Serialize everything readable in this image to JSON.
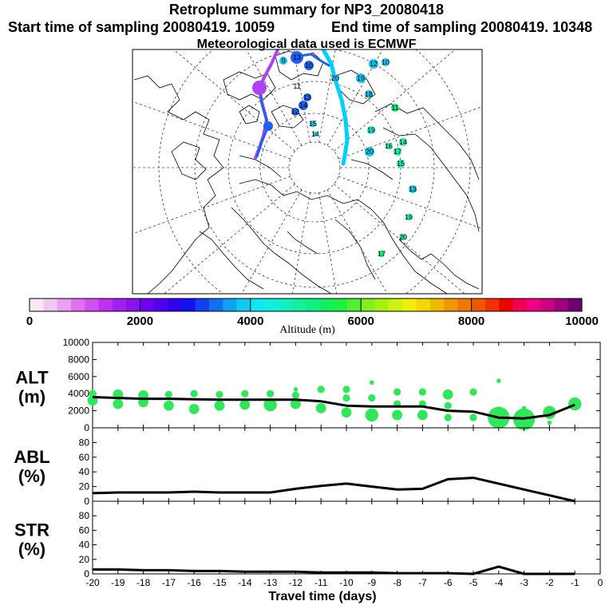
{
  "header": {
    "title": "Retroplume summary for NP3_20080418",
    "start_label": "Start time of sampling 20080419. 10059",
    "end_label": "End time of sampling 20080419. 10348",
    "met_label": "Meteorological data used is ECMWF"
  },
  "colorbar": {
    "ticks": [
      "0",
      "2000",
      "4000",
      "6000",
      "8000",
      "10000"
    ],
    "tick_values": [
      0,
      2000,
      4000,
      6000,
      8000,
      10000
    ],
    "label": "Altitude (m)",
    "colors": [
      "#f8e8f8",
      "#f0c8f0",
      "#e8a0f0",
      "#e070f0",
      "#d050f0",
      "#c030f0",
      "#a020f0",
      "#8a10f0",
      "#7000f0",
      "#5000f0",
      "#3000f0",
      "#1010f0",
      "#1040f0",
      "#1070f0",
      "#10a0f0",
      "#10c8f0",
      "#10e8f0",
      "#10f0e0",
      "#10f0c0",
      "#10f0a0",
      "#10f080",
      "#10f060",
      "#20f040",
      "#50f030",
      "#80f020",
      "#a8f010",
      "#d0f010",
      "#f0f000",
      "#f0d800",
      "#f0b800",
      "#f09800",
      "#f07800",
      "#f05800",
      "#f03000",
      "#f00000",
      "#f00050",
      "#f00080",
      "#d00080",
      "#a00080",
      "#700070"
    ]
  },
  "map": {
    "trajectory_labels": [
      "10",
      "13",
      "9",
      "11",
      "13",
      "14",
      "12",
      "15",
      "14",
      "20",
      "19",
      "18",
      "12",
      "10",
      "11",
      "19",
      "16",
      "14",
      "17",
      "20",
      "15",
      "13",
      "19",
      "20",
      "17"
    ],
    "trajectory_colors": {
      "main": "#00d0ff",
      "high": "#b040f0",
      "mid": "#2060f0"
    }
  },
  "chart_data": [
    {
      "type": "line",
      "name": "ALT",
      "ylabel": "ALT (m)",
      "ylabel_lines": [
        "ALT",
        "(m)"
      ],
      "ylim": [
        0,
        10000
      ],
      "yticks": [
        0,
        2000,
        4000,
        6000,
        8000,
        10000
      ],
      "x": [
        -20,
        -19,
        -18,
        -17,
        -16,
        -15,
        -14,
        -13,
        -12,
        -11,
        -10,
        -9,
        -8,
        -7,
        -6,
        -5,
        -4,
        -3,
        -2,
        -1
      ],
      "values": [
        3600,
        3500,
        3400,
        3400,
        3350,
        3300,
        3300,
        3300,
        3300,
        3100,
        2600,
        2500,
        2500,
        2500,
        2000,
        1900,
        1200,
        1100,
        1500,
        2700
      ],
      "clusters": [
        {
          "x": -20,
          "alt": 4000,
          "size": 2
        },
        {
          "x": -20,
          "alt": 3200,
          "size": 3
        },
        {
          "x": -19,
          "alt": 3900,
          "size": 3
        },
        {
          "x": -19,
          "alt": 2800,
          "size": 3
        },
        {
          "x": -18,
          "alt": 3800,
          "size": 3
        },
        {
          "x": -18,
          "alt": 3000,
          "size": 3
        },
        {
          "x": -17,
          "alt": 3900,
          "size": 2
        },
        {
          "x": -17,
          "alt": 2600,
          "size": 3
        },
        {
          "x": -16,
          "alt": 4000,
          "size": 2
        },
        {
          "x": -16,
          "alt": 2200,
          "size": 3
        },
        {
          "x": -15,
          "alt": 3900,
          "size": 2
        },
        {
          "x": -15,
          "alt": 2600,
          "size": 3
        },
        {
          "x": -14,
          "alt": 4000,
          "size": 2
        },
        {
          "x": -14,
          "alt": 2700,
          "size": 3
        },
        {
          "x": -13,
          "alt": 4000,
          "size": 2
        },
        {
          "x": -13,
          "alt": 2700,
          "size": 4
        },
        {
          "x": -12,
          "alt": 4500,
          "size": 1
        },
        {
          "x": -12,
          "alt": 3800,
          "size": 2
        },
        {
          "x": -12,
          "alt": 2800,
          "size": 3
        },
        {
          "x": -11,
          "alt": 4500,
          "size": 2
        },
        {
          "x": -11,
          "alt": 2300,
          "size": 3
        },
        {
          "x": -10,
          "alt": 4500,
          "size": 2
        },
        {
          "x": -10,
          "alt": 3500,
          "size": 2
        },
        {
          "x": -10,
          "alt": 1800,
          "size": 3
        },
        {
          "x": -9,
          "alt": 5300,
          "size": 1
        },
        {
          "x": -9,
          "alt": 3500,
          "size": 2
        },
        {
          "x": -9,
          "alt": 1500,
          "size": 4
        },
        {
          "x": -8,
          "alt": 4200,
          "size": 2
        },
        {
          "x": -8,
          "alt": 2800,
          "size": 2
        },
        {
          "x": -8,
          "alt": 1500,
          "size": 3
        },
        {
          "x": -7,
          "alt": 4200,
          "size": 2
        },
        {
          "x": -7,
          "alt": 2800,
          "size": 2
        },
        {
          "x": -7,
          "alt": 1500,
          "size": 3
        },
        {
          "x": -6,
          "alt": 3900,
          "size": 3
        },
        {
          "x": -6,
          "alt": 2600,
          "size": 2
        },
        {
          "x": -6,
          "alt": 1200,
          "size": 2
        },
        {
          "x": -5,
          "alt": 4200,
          "size": 2
        },
        {
          "x": -5,
          "alt": 1200,
          "size": 2
        },
        {
          "x": -4,
          "alt": 5500,
          "size": 1
        },
        {
          "x": -4,
          "alt": 1200,
          "size": 7
        },
        {
          "x": -3,
          "alt": 1000,
          "size": 7
        },
        {
          "x": -3,
          "alt": 2300,
          "size": 1
        },
        {
          "x": -2,
          "alt": 1800,
          "size": 4
        },
        {
          "x": -2,
          "alt": 600,
          "size": 1
        },
        {
          "x": -1,
          "alt": 2800,
          "size": 4
        }
      ]
    },
    {
      "type": "line",
      "name": "ABL",
      "ylabel": "ABL (%)",
      "ylabel_lines": [
        "ABL",
        "(%)"
      ],
      "ylim": [
        0,
        100
      ],
      "yticks": [
        0,
        20,
        40,
        60,
        80
      ],
      "x": [
        -20,
        -19,
        -18,
        -17,
        -16,
        -15,
        -14,
        -13,
        -12,
        -11,
        -10,
        -9,
        -8,
        -7,
        -6,
        -5,
        -4,
        -3,
        -2,
        -1
      ],
      "values": [
        11,
        12,
        12,
        12,
        13,
        12,
        12,
        12,
        17,
        21,
        24,
        20,
        16,
        17,
        30,
        32,
        24,
        16,
        8,
        0
      ]
    },
    {
      "type": "line",
      "name": "STR",
      "ylabel": "STR (%)",
      "ylabel_lines": [
        "STR",
        "(%)"
      ],
      "ylim": [
        0,
        100
      ],
      "yticks": [
        0,
        20,
        40,
        60,
        80
      ],
      "x": [
        -20,
        -19,
        -18,
        -17,
        -16,
        -15,
        -14,
        -13,
        -12,
        -11,
        -10,
        -9,
        -8,
        -7,
        -6,
        -5,
        -4,
        -3,
        -2,
        -1
      ],
      "values": [
        6,
        6,
        5,
        5,
        4,
        4,
        3,
        3,
        3,
        2,
        2,
        2,
        1,
        1,
        1,
        0,
        10,
        0,
        0,
        0
      ]
    }
  ],
  "xaxis": {
    "label": "Travel time (days)",
    "ticks": [
      -20,
      -19,
      -18,
      -17,
      -16,
      -15,
      -14,
      -13,
      -12,
      -11,
      -10,
      -9,
      -8,
      -7,
      -6,
      -5,
      -4,
      -3,
      -2,
      -1,
      0
    ],
    "tick_labels": [
      "-20",
      "-19",
      "-18",
      "-17",
      "-16",
      "-15",
      "-14",
      "-13",
      "-12",
      "-11",
      "-10",
      "-9",
      "-8",
      "-7",
      "-6",
      "-5",
      "-4",
      "-3",
      "-2",
      "-1",
      "0"
    ]
  }
}
